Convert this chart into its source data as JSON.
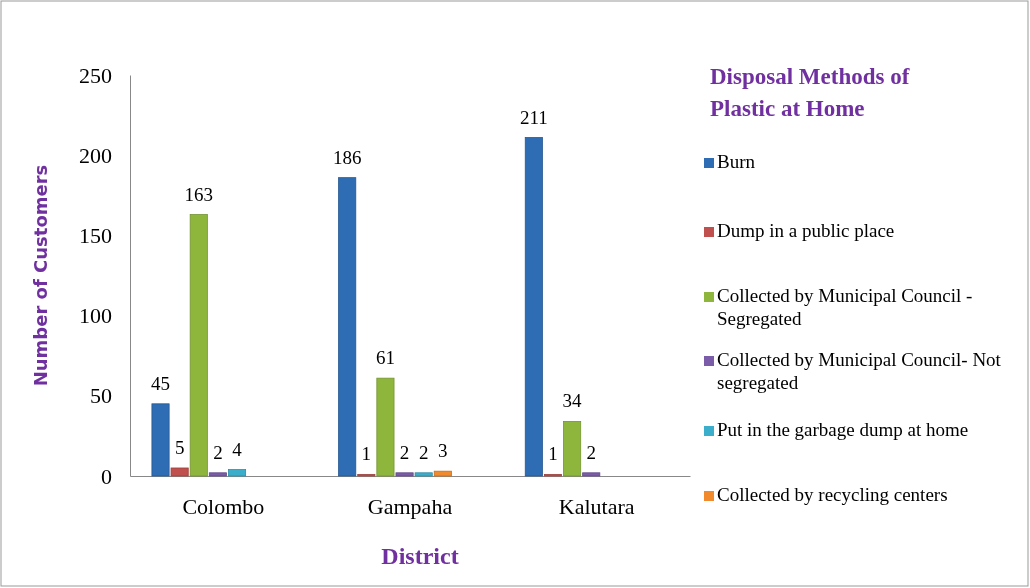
{
  "chart_data": {
    "type": "bar",
    "legend_title": "Disposal Methods of Plastic at Home",
    "xlabel": "District",
    "ylabel": "Number of Customers",
    "categories": [
      "Colombo",
      "Gampaha",
      "Kalutara"
    ],
    "series": [
      {
        "name": "Burn",
        "color": "#2e6db3",
        "values": [
          45,
          186,
          211
        ]
      },
      {
        "name": "Dump in a public place",
        "color": "#c0504d",
        "values": [
          5,
          1,
          1
        ]
      },
      {
        "name": "Collected by Municipal Council - Segregated",
        "color": "#8fb63c",
        "values": [
          163,
          61,
          34
        ]
      },
      {
        "name": "Collected by Municipal Council- Not segregated",
        "color": "#7a5ca8",
        "values": [
          2,
          2,
          2
        ]
      },
      {
        "name": "Put in the garbage dump at home",
        "color": "#3aaecb",
        "values": [
          4,
          2,
          null
        ]
      },
      {
        "name": "Collected by recycling centers",
        "color": "#f08a2c",
        "values": [
          null,
          3,
          null
        ]
      }
    ],
    "ylim": [
      0,
      250
    ],
    "yticks": [
      0,
      50,
      100,
      150,
      200,
      250
    ],
    "grid": false,
    "legend": "right",
    "data_labels": true
  }
}
